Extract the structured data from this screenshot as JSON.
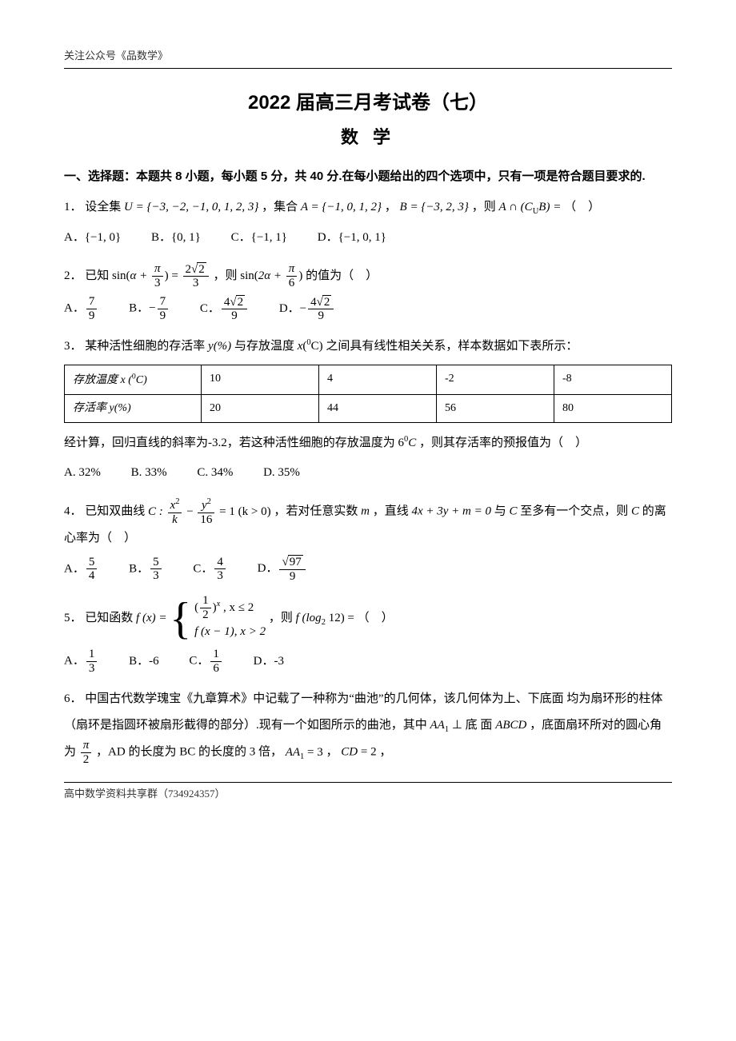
{
  "header_tag": "关注公众号《品数学》",
  "title_main": "2022 届高三月考试卷（七）",
  "title_sub": "数 学",
  "section1_head": "一、选择题：本题共 8 小题，每小题 5 分，共 40 分.在每小题给出的四个选项中，只有一项是符合题目要求的.",
  "q1": {
    "num": "1．",
    "text1": "设全集",
    "U": "U = {−3, −2, −1, 0, 1, 2, 3}",
    "text2": "，集合",
    "A": "A = {−1, 0, 1, 2}",
    "text3": "，",
    "B": "B = {−3, 2, 3}",
    "text4": "，则",
    "expr": "A ∩ (C",
    "exprU": "U",
    "expr2": "B) =",
    "tail": "（　）",
    "optA": "A．{−1, 0}",
    "optB": "B．{0, 1}",
    "optC": "C．{−1, 1}",
    "optD": "D．{−1, 0, 1}"
  },
  "q2": {
    "num": "2．",
    "text1": "已知",
    "sin": "sin",
    "alpha_plus": "α +",
    "pi3_num": "π",
    "pi3_den": "3",
    "eq": "=",
    "rhs_num_coef": "2",
    "rhs_num_rad": "2",
    "rhs_den": "3",
    "text2": "，则",
    "twoalpha": "2α +",
    "pi6_num": "π",
    "pi6_den": "6",
    "text3": "的值为（　）",
    "A": "A．",
    "A_num": "7",
    "A_den": "9",
    "B": "B．",
    "B_num": "7",
    "B_den": "9",
    "C": "C．",
    "C_coef": "4",
    "C_rad": "2",
    "C_den": "9",
    "D": "D．",
    "D_coef": "4",
    "D_rad": "2",
    "D_den": "9"
  },
  "q3": {
    "num": "3．",
    "text1": "某种活性细胞的存活率",
    "y": "y(%)",
    "text2": "与存放温度",
    "x": "x",
    "unit": "°C",
    "text3": "之间具有线性相关关系，样本数据如下表所示：",
    "row1_label": "存放温度 x (°C)",
    "row2_label": "存活率 y(%)",
    "temps": [
      "10",
      "4",
      "-2",
      "-8"
    ],
    "rates": [
      "20",
      "44",
      "56",
      "80"
    ],
    "text4": "经计算，回归直线的斜率为-3.2，若这种活性细胞的存放温度为",
    "six": "6°C",
    "text5": "，则其存活率的预报值为（　）",
    "optA": "A. 32%",
    "optB": "B. 33%",
    "optC": "C. 34%",
    "optD": "D. 35%"
  },
  "q4": {
    "num": "4．",
    "text1": "已知双曲线",
    "Clabel": "C :",
    "xnum": "x",
    "xk": "k",
    "ynum": "y",
    "y16": "16",
    "eq1": "= 1 (k > 0)",
    "text2": "，若对任意实数",
    "m": "m",
    "text3": "，直线",
    "line": "4x + 3y + m = 0",
    "text4": "与",
    "C": "C",
    "text5": "至多有一个交点，则",
    "text6": "的离心率为（　）",
    "A": "A．",
    "A_num": "5",
    "A_den": "4",
    "B": "B．",
    "B_num": "5",
    "B_den": "3",
    "Copt": "C．",
    "C_num": "4",
    "C_den": "3",
    "D": "D．",
    "D_rad": "97",
    "D_den": "9"
  },
  "q5": {
    "num": "5．",
    "text1": "已知函数",
    "fx": "f (x) =",
    "case1_base_num": "1",
    "case1_base_den": "2",
    "case1_exp": "x",
    "case1_cond": ", x ≤ 2",
    "case2": "f (x − 1), x > 2",
    "text2": "，则",
    "eval": "f (log",
    "log2": "2",
    "twelve": " 12) =",
    "tail": "（　）",
    "A": "A．",
    "A_num": "1",
    "A_den": "3",
    "B": "B．-6",
    "Copt": "C．",
    "C_num": "1",
    "C_den": "6",
    "D": "D．-3"
  },
  "q6": {
    "num": "6．",
    "line1": "中国古代数学瑰宝《九章算术》中记载了一种称为“曲池”的几何体，该几何体为上、下底面",
    "line2a": "均为扇环形的柱体（扇环是指圆环被扇形截得的部分）.现有一个如图所示的曲池，其中",
    "AA1": "AA",
    "sub1": "1",
    "perp": " ⊥ 底",
    "line3a": "面",
    "ABCD": "ABCD",
    "line3b": "，底面扇环所对的圆心角为",
    "pi2_num": "π",
    "pi2_den": "2",
    "line3c": "，AD 的长度为 BC 的长度的 3 倍，",
    "aa1eq": " = 3",
    "line3d": "，",
    "CD": "CD",
    "cdeq": " = 2",
    "line3e": "，"
  },
  "footer_tag": "高中数学资料共享群（734924357）"
}
